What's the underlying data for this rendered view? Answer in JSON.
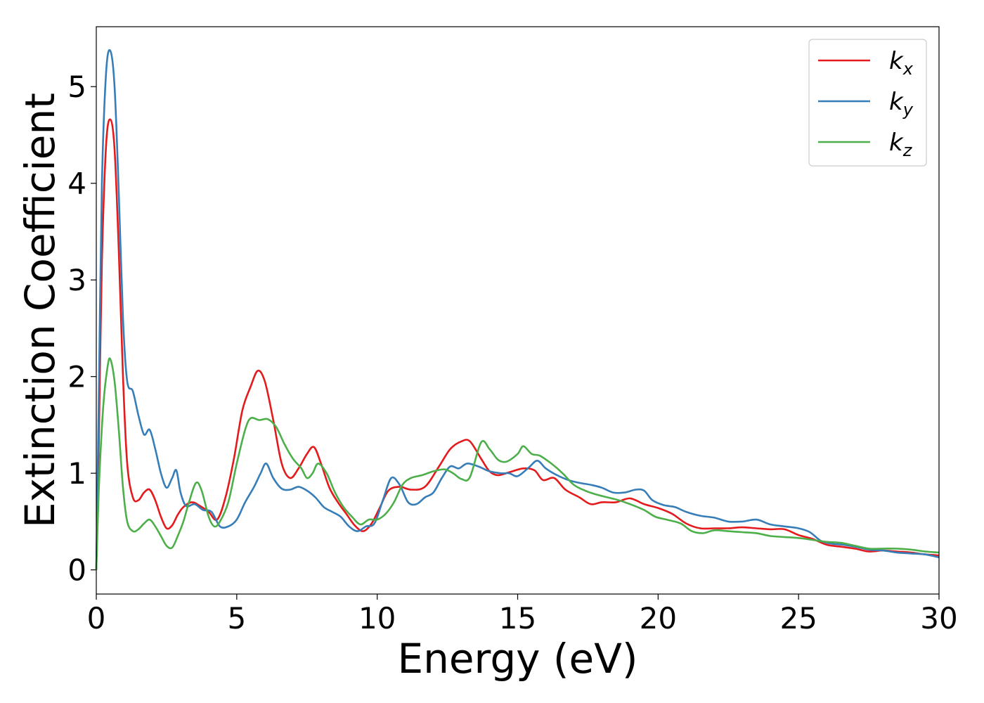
{
  "chart_data": {
    "type": "line",
    "title": "",
    "xlabel": "Energy (eV)",
    "ylabel": "Extinction Coefficient",
    "xlim": [
      0,
      30
    ],
    "ylim": [
      -0.25,
      5.62
    ],
    "xticks": [
      0,
      5,
      10,
      15,
      20,
      25,
      30
    ],
    "yticks": [
      0,
      1,
      2,
      3,
      4,
      5
    ],
    "grid": false,
    "legend_position": "top-right",
    "series": [
      {
        "name": "k_x",
        "label_main": "k",
        "label_sub": "x",
        "color": "#e41a1c",
        "points": [
          [
            0,
            0
          ],
          [
            0.1,
            1.5
          ],
          [
            0.2,
            3.2
          ],
          [
            0.35,
            4.4
          ],
          [
            0.5,
            4.66
          ],
          [
            0.65,
            4.35
          ],
          [
            0.8,
            3.3
          ],
          [
            0.95,
            2.0
          ],
          [
            1.1,
            1.1
          ],
          [
            1.3,
            0.75
          ],
          [
            1.5,
            0.72
          ],
          [
            1.7,
            0.8
          ],
          [
            1.9,
            0.83
          ],
          [
            2.1,
            0.72
          ],
          [
            2.3,
            0.55
          ],
          [
            2.5,
            0.43
          ],
          [
            2.7,
            0.46
          ],
          [
            2.9,
            0.57
          ],
          [
            3.1,
            0.65
          ],
          [
            3.4,
            0.7
          ],
          [
            3.7,
            0.66
          ],
          [
            4.0,
            0.6
          ],
          [
            4.3,
            0.52
          ],
          [
            4.6,
            0.75
          ],
          [
            4.9,
            1.15
          ],
          [
            5.2,
            1.65
          ],
          [
            5.5,
            1.9
          ],
          [
            5.75,
            2.06
          ],
          [
            6.0,
            1.95
          ],
          [
            6.3,
            1.55
          ],
          [
            6.6,
            1.1
          ],
          [
            6.9,
            0.95
          ],
          [
            7.2,
            1.05
          ],
          [
            7.5,
            1.2
          ],
          [
            7.75,
            1.27
          ],
          [
            8.0,
            1.1
          ],
          [
            8.3,
            0.85
          ],
          [
            8.6,
            0.7
          ],
          [
            8.9,
            0.58
          ],
          [
            9.2,
            0.46
          ],
          [
            9.5,
            0.4
          ],
          [
            9.8,
            0.48
          ],
          [
            10.1,
            0.65
          ],
          [
            10.4,
            0.82
          ],
          [
            10.8,
            0.86
          ],
          [
            11.2,
            0.83
          ],
          [
            11.7,
            0.86
          ],
          [
            12.2,
            1.07
          ],
          [
            12.6,
            1.25
          ],
          [
            13.0,
            1.33
          ],
          [
            13.3,
            1.33
          ],
          [
            13.7,
            1.15
          ],
          [
            14.0,
            1.02
          ],
          [
            14.3,
            0.98
          ],
          [
            14.7,
            1.01
          ],
          [
            15.2,
            1.05
          ],
          [
            15.6,
            1.03
          ],
          [
            15.9,
            0.93
          ],
          [
            16.3,
            0.95
          ],
          [
            16.7,
            0.83
          ],
          [
            17.2,
            0.75
          ],
          [
            17.6,
            0.68
          ],
          [
            18.0,
            0.7
          ],
          [
            18.5,
            0.7
          ],
          [
            19.0,
            0.74
          ],
          [
            19.5,
            0.68
          ],
          [
            20.0,
            0.64
          ],
          [
            20.5,
            0.58
          ],
          [
            21.0,
            0.48
          ],
          [
            21.5,
            0.43
          ],
          [
            22.0,
            0.43
          ],
          [
            22.5,
            0.43
          ],
          [
            23.0,
            0.44
          ],
          [
            23.5,
            0.43
          ],
          [
            24.0,
            0.42
          ],
          [
            24.5,
            0.42
          ],
          [
            25.0,
            0.36
          ],
          [
            25.5,
            0.32
          ],
          [
            26.0,
            0.26
          ],
          [
            26.5,
            0.24
          ],
          [
            27.0,
            0.22
          ],
          [
            27.5,
            0.19
          ],
          [
            28.0,
            0.2
          ],
          [
            28.5,
            0.19
          ],
          [
            29.0,
            0.18
          ],
          [
            29.5,
            0.16
          ],
          [
            30.0,
            0.15
          ]
        ]
      },
      {
        "name": "k_y",
        "label_main": "k",
        "label_sub": "y",
        "color": "#377eb8",
        "points": [
          [
            0,
            0
          ],
          [
            0.1,
            2.0
          ],
          [
            0.2,
            4.0
          ],
          [
            0.35,
            5.15
          ],
          [
            0.5,
            5.37
          ],
          [
            0.65,
            5.0
          ],
          [
            0.8,
            3.9
          ],
          [
            0.95,
            2.6
          ],
          [
            1.1,
            1.95
          ],
          [
            1.3,
            1.85
          ],
          [
            1.5,
            1.6
          ],
          [
            1.7,
            1.4
          ],
          [
            1.9,
            1.45
          ],
          [
            2.1,
            1.25
          ],
          [
            2.3,
            1.0
          ],
          [
            2.5,
            0.85
          ],
          [
            2.7,
            0.95
          ],
          [
            2.85,
            1.03
          ],
          [
            3.0,
            0.8
          ],
          [
            3.2,
            0.66
          ],
          [
            3.5,
            0.68
          ],
          [
            3.8,
            0.62
          ],
          [
            4.1,
            0.6
          ],
          [
            4.4,
            0.45
          ],
          [
            4.7,
            0.45
          ],
          [
            5.0,
            0.52
          ],
          [
            5.3,
            0.7
          ],
          [
            5.6,
            0.85
          ],
          [
            5.85,
            1.0
          ],
          [
            6.05,
            1.1
          ],
          [
            6.3,
            0.95
          ],
          [
            6.6,
            0.84
          ],
          [
            6.9,
            0.83
          ],
          [
            7.2,
            0.86
          ],
          [
            7.5,
            0.82
          ],
          [
            7.8,
            0.75
          ],
          [
            8.1,
            0.65
          ],
          [
            8.4,
            0.6
          ],
          [
            8.7,
            0.55
          ],
          [
            9.0,
            0.45
          ],
          [
            9.3,
            0.4
          ],
          [
            9.6,
            0.45
          ],
          [
            9.9,
            0.48
          ],
          [
            10.2,
            0.72
          ],
          [
            10.5,
            0.95
          ],
          [
            10.8,
            0.88
          ],
          [
            11.1,
            0.7
          ],
          [
            11.4,
            0.68
          ],
          [
            11.7,
            0.75
          ],
          [
            12.0,
            0.8
          ],
          [
            12.3,
            0.95
          ],
          [
            12.6,
            1.07
          ],
          [
            12.9,
            1.05
          ],
          [
            13.2,
            1.1
          ],
          [
            13.6,
            1.07
          ],
          [
            14.0,
            1.02
          ],
          [
            14.4,
            1.0
          ],
          [
            14.7,
            1.0
          ],
          [
            15.0,
            0.97
          ],
          [
            15.4,
            1.06
          ],
          [
            15.7,
            1.13
          ],
          [
            16.0,
            1.05
          ],
          [
            16.4,
            0.98
          ],
          [
            16.8,
            0.93
          ],
          [
            17.2,
            0.9
          ],
          [
            17.6,
            0.88
          ],
          [
            18.0,
            0.85
          ],
          [
            18.4,
            0.8
          ],
          [
            18.8,
            0.8
          ],
          [
            19.2,
            0.83
          ],
          [
            19.5,
            0.82
          ],
          [
            19.8,
            0.72
          ],
          [
            20.2,
            0.67
          ],
          [
            20.6,
            0.65
          ],
          [
            21.0,
            0.6
          ],
          [
            21.5,
            0.56
          ],
          [
            22.0,
            0.54
          ],
          [
            22.5,
            0.5
          ],
          [
            23.0,
            0.5
          ],
          [
            23.5,
            0.52
          ],
          [
            24.0,
            0.47
          ],
          [
            24.5,
            0.45
          ],
          [
            25.0,
            0.43
          ],
          [
            25.4,
            0.39
          ],
          [
            25.8,
            0.3
          ],
          [
            26.2,
            0.27
          ],
          [
            26.6,
            0.26
          ],
          [
            27.0,
            0.24
          ],
          [
            27.5,
            0.21
          ],
          [
            28.0,
            0.2
          ],
          [
            28.5,
            0.18
          ],
          [
            29.0,
            0.17
          ],
          [
            29.5,
            0.16
          ],
          [
            30.0,
            0.13
          ]
        ]
      },
      {
        "name": "k_z",
        "label_main": "k",
        "label_sub": "z",
        "color": "#4daf4a",
        "points": [
          [
            0,
            0
          ],
          [
            0.1,
            0.9
          ],
          [
            0.25,
            1.7
          ],
          [
            0.4,
            2.1
          ],
          [
            0.5,
            2.18
          ],
          [
            0.65,
            1.95
          ],
          [
            0.8,
            1.45
          ],
          [
            0.95,
            0.85
          ],
          [
            1.1,
            0.5
          ],
          [
            1.3,
            0.4
          ],
          [
            1.5,
            0.42
          ],
          [
            1.7,
            0.48
          ],
          [
            1.9,
            0.52
          ],
          [
            2.1,
            0.45
          ],
          [
            2.3,
            0.35
          ],
          [
            2.5,
            0.25
          ],
          [
            2.7,
            0.23
          ],
          [
            2.9,
            0.35
          ],
          [
            3.1,
            0.5
          ],
          [
            3.3,
            0.7
          ],
          [
            3.55,
            0.9
          ],
          [
            3.75,
            0.82
          ],
          [
            4.0,
            0.55
          ],
          [
            4.2,
            0.45
          ],
          [
            4.4,
            0.5
          ],
          [
            4.7,
            0.7
          ],
          [
            5.0,
            1.1
          ],
          [
            5.3,
            1.45
          ],
          [
            5.5,
            1.57
          ],
          [
            5.8,
            1.55
          ],
          [
            6.1,
            1.56
          ],
          [
            6.4,
            1.48
          ],
          [
            6.7,
            1.3
          ],
          [
            7.0,
            1.15
          ],
          [
            7.3,
            1.05
          ],
          [
            7.5,
            0.95
          ],
          [
            7.7,
            1.0
          ],
          [
            7.9,
            1.1
          ],
          [
            8.2,
            1.0
          ],
          [
            8.5,
            0.8
          ],
          [
            8.8,
            0.65
          ],
          [
            9.1,
            0.55
          ],
          [
            9.4,
            0.47
          ],
          [
            9.7,
            0.52
          ],
          [
            10.0,
            0.52
          ],
          [
            10.3,
            0.58
          ],
          [
            10.6,
            0.7
          ],
          [
            10.9,
            0.88
          ],
          [
            11.2,
            0.95
          ],
          [
            11.6,
            0.98
          ],
          [
            12.0,
            1.02
          ],
          [
            12.4,
            1.04
          ],
          [
            12.7,
            1.0
          ],
          [
            13.0,
            0.94
          ],
          [
            13.3,
            0.96
          ],
          [
            13.7,
            1.32
          ],
          [
            14.0,
            1.25
          ],
          [
            14.3,
            1.14
          ],
          [
            14.6,
            1.12
          ],
          [
            15.0,
            1.2
          ],
          [
            15.2,
            1.28
          ],
          [
            15.5,
            1.2
          ],
          [
            15.8,
            1.18
          ],
          [
            16.2,
            1.1
          ],
          [
            16.6,
            1.0
          ],
          [
            17.0,
            0.88
          ],
          [
            17.4,
            0.82
          ],
          [
            17.8,
            0.78
          ],
          [
            18.2,
            0.75
          ],
          [
            18.6,
            0.72
          ],
          [
            19.0,
            0.68
          ],
          [
            19.5,
            0.62
          ],
          [
            19.9,
            0.55
          ],
          [
            20.3,
            0.52
          ],
          [
            20.8,
            0.48
          ],
          [
            21.2,
            0.4
          ],
          [
            21.6,
            0.38
          ],
          [
            22.0,
            0.41
          ],
          [
            22.5,
            0.4
          ],
          [
            23.0,
            0.39
          ],
          [
            23.5,
            0.38
          ],
          [
            24.0,
            0.35
          ],
          [
            24.5,
            0.34
          ],
          [
            25.0,
            0.33
          ],
          [
            25.5,
            0.31
          ],
          [
            26.0,
            0.29
          ],
          [
            26.5,
            0.28
          ],
          [
            27.0,
            0.25
          ],
          [
            27.5,
            0.22
          ],
          [
            28.0,
            0.22
          ],
          [
            28.5,
            0.22
          ],
          [
            29.0,
            0.21
          ],
          [
            29.5,
            0.19
          ],
          [
            30.0,
            0.18
          ]
        ]
      }
    ]
  }
}
